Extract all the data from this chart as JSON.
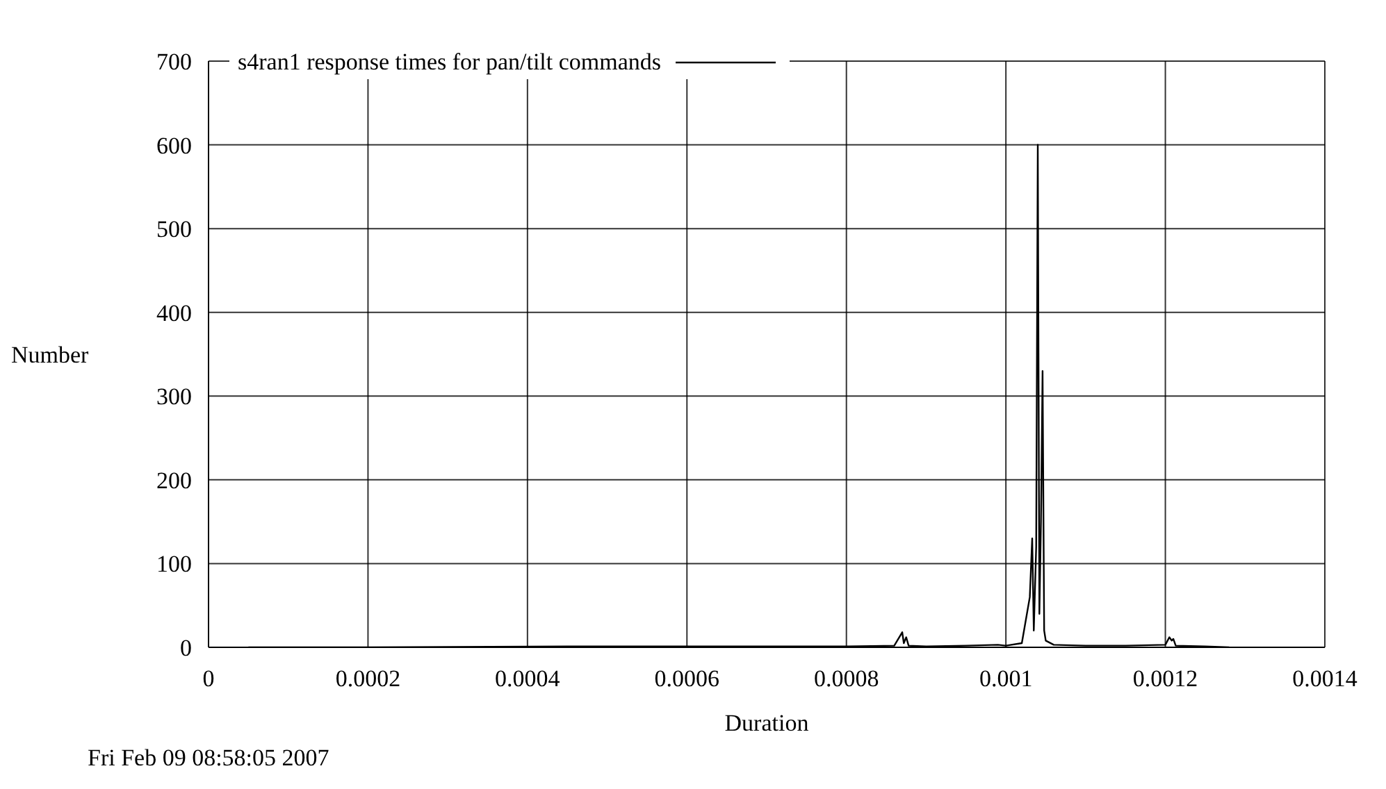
{
  "chart_data": {
    "type": "line",
    "xlabel": "Duration",
    "ylabel": "Number",
    "annotations": [
      "Fri Feb 09 08:58:05 2007"
    ],
    "xlim": [
      0,
      0.0014
    ],
    "xticks": [
      0,
      0.0002,
      0.0004,
      0.0006,
      0.0008,
      0.001,
      0.0012,
      0.0014
    ],
    "ylim": [
      0,
      700
    ],
    "yticks": [
      0,
      100,
      200,
      300,
      400,
      500,
      600,
      700
    ],
    "grid": true,
    "legend": "top",
    "marker": "none",
    "line_style": "solid",
    "series": [
      {
        "name": "s4ran1 response times for pan/tilt commands",
        "color": "#000000",
        "x": [
          5e-05,
          0.0002,
          0.00045,
          0.0006,
          0.0008,
          0.00086,
          0.00087,
          0.000872,
          0.000875,
          0.000878,
          0.0009,
          0.00095,
          0.00099,
          0.001,
          0.00102,
          0.00103,
          0.001033,
          0.001035,
          0.001038,
          0.00104,
          0.001042,
          0.001044,
          0.001046,
          0.001048,
          0.00105,
          0.00106,
          0.0011,
          0.00115,
          0.0012,
          0.001205,
          0.001208,
          0.00121,
          0.001213,
          0.00125,
          0.00128
        ],
        "values": [
          0,
          0,
          1,
          1,
          1,
          2,
          18,
          5,
          12,
          2,
          1,
          2,
          3,
          2,
          5,
          60,
          130,
          20,
          120,
          600,
          40,
          150,
          330,
          20,
          8,
          3,
          2,
          2,
          3,
          12,
          8,
          10,
          2,
          1,
          0
        ]
      }
    ]
  }
}
